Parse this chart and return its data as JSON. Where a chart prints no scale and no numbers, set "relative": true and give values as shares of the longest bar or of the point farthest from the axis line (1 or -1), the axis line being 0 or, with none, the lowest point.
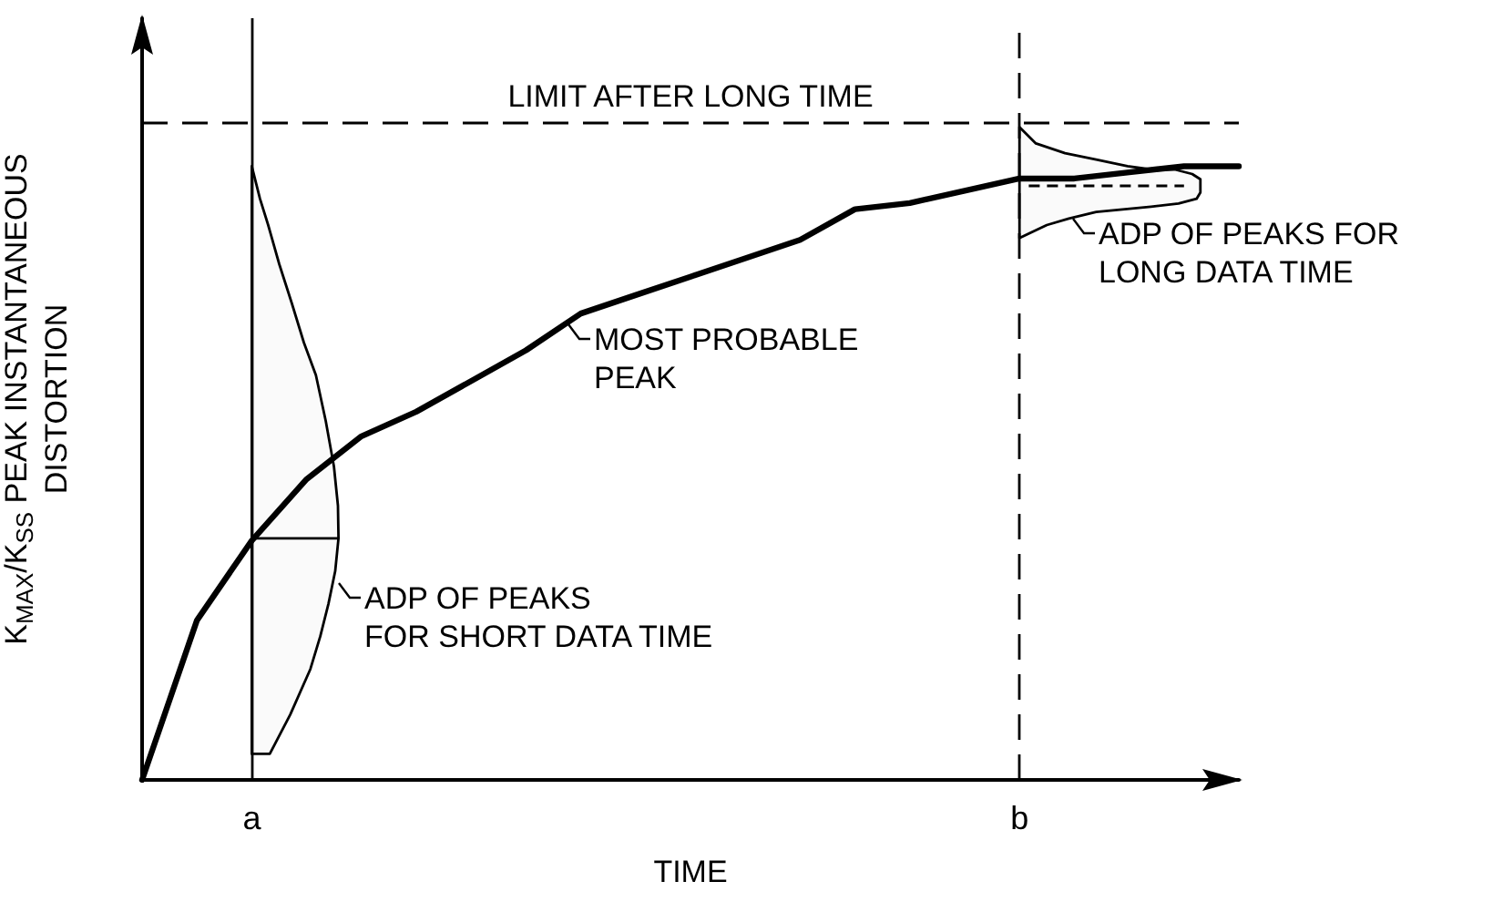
{
  "chart_data": {
    "type": "line",
    "relative": true,
    "xlabel": "TIME",
    "ylabel": "K$_{MAX}$/K$_{SS}$ PEAK INSTANTANEOUS\nDISTORTION",
    "categories": [
      null,
      null,
      "a",
      null,
      null,
      null,
      null,
      null,
      null,
      null,
      null,
      null,
      null,
      null,
      null,
      null,
      "b",
      null,
      null,
      null,
      null
    ],
    "series": [
      {
        "color": "#000000",
        "values": [
          0,
          0.26,
          0.39,
          0.49,
          0.56,
          0.6,
          0.65,
          0.7,
          0.76,
          0.79,
          0.82,
          0.85,
          0.88,
          0.93,
          0.94,
          0.96,
          0.98,
          0.98,
          0.99,
          1,
          1
        ]
      }
    ],
    "ref_lines": [
      {
        "axis": "y",
        "value": 1.07,
        "label": "LIMIT AFTER LONG TIME",
        "line_style": "dashed",
        "color": "#000000"
      },
      {
        "axis": "x",
        "value": "a",
        "label": null,
        "line_style": "solid",
        "color": "#000000"
      },
      {
        "axis": "x",
        "value": "b",
        "label": null,
        "line_style": "dashed",
        "color": "#000000"
      }
    ],
    "annotations": [
      "MOST PROBABLE\nPEAK",
      "ADP OF PEAKS\nFOR SHORT DATA TIME",
      "ADP OF PEAKS FOR\nLONG DATA TIME"
    ],
    "grid": false
  }
}
